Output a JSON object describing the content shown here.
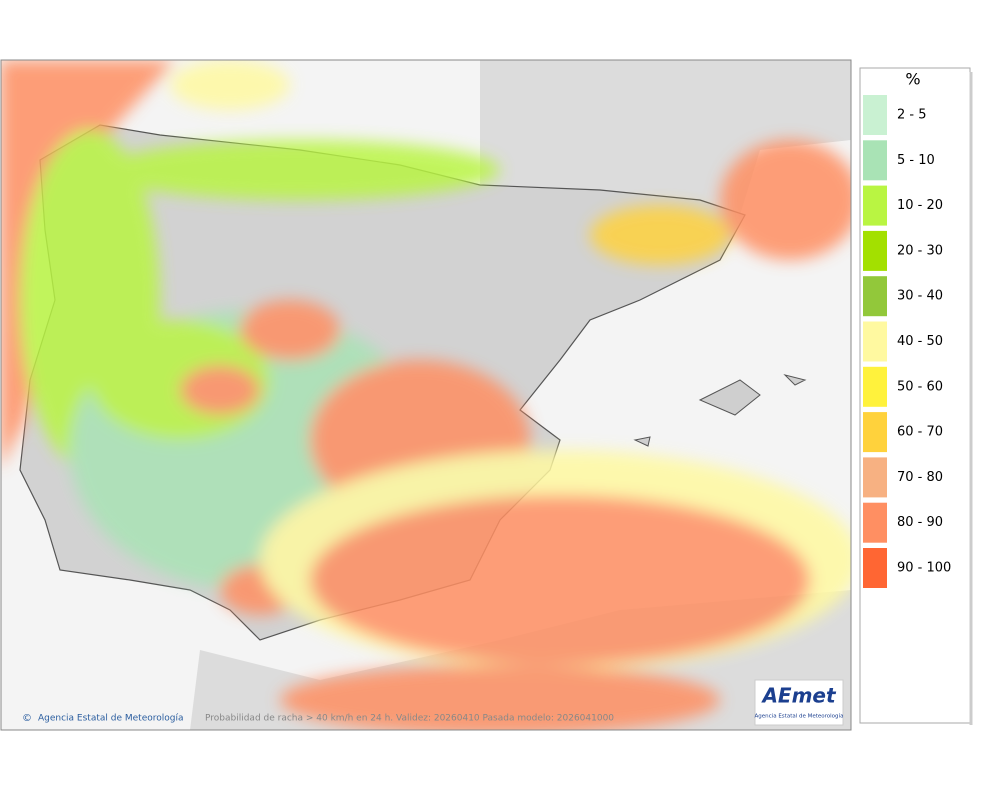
{
  "legend": {
    "title": "%",
    "items": [
      {
        "label": "2 - 5",
        "color": "#c9f1d2"
      },
      {
        "label": "5 - 10",
        "color": "#a9e3b5"
      },
      {
        "label": "10 - 20",
        "color": "#b9f542"
      },
      {
        "label": "20 - 30",
        "color": "#a3e000"
      },
      {
        "label": "30 - 40",
        "color": "#92c83a"
      },
      {
        "label": "40 - 50",
        "color": "#fff9a0"
      },
      {
        "label": "50 - 60",
        "color": "#fff23c"
      },
      {
        "label": "60 - 70",
        "color": "#ffd23c"
      },
      {
        "label": "70 - 80",
        "color": "#f7b182"
      },
      {
        "label": "80 - 90",
        "color": "#ff8f62"
      },
      {
        "label": "90 - 100",
        "color": "#ff6633"
      }
    ]
  },
  "footer": {
    "copyright": "Agencia Estatal de Meteorología",
    "caption": "Probabilidad de racha > 40 km/h en 24 h. Validez: 20260410 Pasada modelo: 2026041000"
  },
  "logo": {
    "text": "AEmet",
    "subtitle": "Agencia Estatal de Meteorología"
  }
}
